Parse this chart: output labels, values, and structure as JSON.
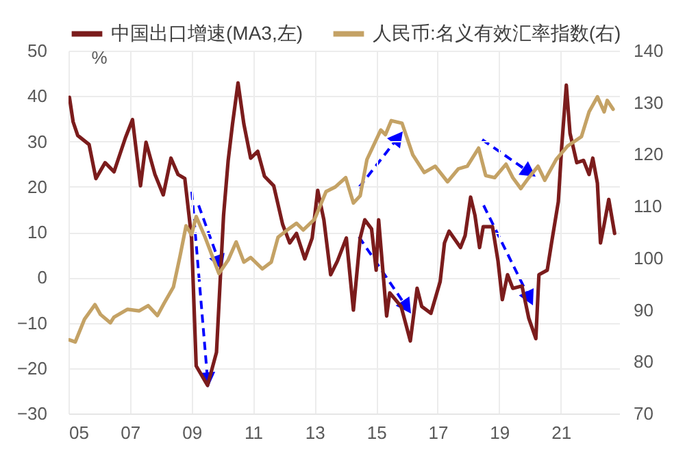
{
  "chart_data": {
    "type": "line",
    "ylabel": "%",
    "grid": true,
    "legend": "top",
    "line_style": "solid",
    "xlim": [
      2005,
      2022.9
    ],
    "xticks": [
      {
        "value": 2005,
        "label": "05"
      },
      {
        "value": 2007,
        "label": "07"
      },
      {
        "value": 2009,
        "label": "09"
      },
      {
        "value": 2011,
        "label": "11"
      },
      {
        "value": 2013,
        "label": "13"
      },
      {
        "value": 2015,
        "label": "15"
      },
      {
        "value": 2017,
        "label": "17"
      },
      {
        "value": 2019,
        "label": "19"
      },
      {
        "value": 2021,
        "label": "21"
      }
    ],
    "ylim": [
      -30,
      50
    ],
    "yticks": [
      -30,
      -20,
      -10,
      0,
      10,
      20,
      30,
      40,
      50
    ],
    "y2lim": [
      70,
      140
    ],
    "y2ticks": [
      70,
      80,
      90,
      100,
      110,
      120,
      130,
      140
    ],
    "series": [
      {
        "name": "中国出口增速(MA3,左)",
        "color": "#7b1c1c",
        "x": [
          2005.03,
          2005.15,
          2005.3,
          2005.67,
          2005.89,
          2006.19,
          2006.48,
          2006.85,
          2007.08,
          2007.34,
          2007.52,
          2007.81,
          2008.08,
          2008.33,
          2008.56,
          2008.78,
          2009.0,
          2009.15,
          2009.52,
          2009.81,
          2010.04,
          2010.19,
          2010.33,
          2010.51,
          2010.7,
          2010.92,
          2011.15,
          2011.37,
          2011.67,
          2011.96,
          2012.19,
          2012.41,
          2012.68,
          2012.92,
          2013.1,
          2013.3,
          2013.52,
          2013.74,
          2014.03,
          2014.26,
          2014.48,
          2014.63,
          2014.85,
          2015.0,
          2015.08,
          2015.34,
          2015.44,
          2015.81,
          2016.11,
          2016.33,
          2016.48,
          2016.78,
          2017.08,
          2017.22,
          2017.37,
          2017.74,
          2017.89,
          2018.07,
          2018.21,
          2018.36,
          2018.48,
          2018.78,
          2018.96,
          2019.1,
          2019.27,
          2019.44,
          2019.74,
          2019.96,
          2020.19,
          2020.29,
          2020.56,
          2020.7,
          2020.92,
          2021.03,
          2021.18,
          2021.3,
          2021.52,
          2021.74,
          2021.92,
          2022.04,
          2022.19,
          2022.29,
          2022.41,
          2022.56,
          2022.75
        ],
        "values": [
          39.7,
          34.3,
          31.3,
          29.3,
          21.8,
          25.3,
          23.3,
          30.8,
          34.8,
          20.2,
          29.8,
          22.7,
          18.2,
          26.3,
          22.7,
          21.8,
          8.7,
          -19.5,
          -23.8,
          -16.5,
          13.7,
          25.8,
          33.8,
          42.9,
          33.8,
          26.3,
          27.8,
          22.3,
          20.2,
          11.7,
          7.6,
          9.7,
          4.1,
          8.7,
          19.2,
          12.7,
          0.6,
          3.6,
          8.7,
          -7.2,
          8.7,
          12.7,
          10.7,
          1.6,
          12.7,
          -8.5,
          -3.4,
          -6.4,
          -14,
          -2.4,
          -6.4,
          -7.9,
          -0.9,
          7.6,
          10.2,
          6.6,
          9.2,
          17.7,
          13.7,
          6.6,
          11.2,
          11.2,
          3.6,
          -4.9,
          0.6,
          -2.4,
          -1.9,
          -9,
          -13.5,
          0.6,
          1.6,
          7.6,
          16.7,
          28.8,
          42.4,
          31.8,
          25.3,
          25.8,
          22.7,
          26.3,
          20.8,
          7.6,
          11.7,
          17.2,
          9.7
        ]
      },
      {
        "name": "人民币:名义有效汇率指数(右)",
        "color": "#c4a265",
        "axis": "y2",
        "x": [
          2005.03,
          2005.22,
          2005.52,
          2005.86,
          2006.04,
          2006.36,
          2006.48,
          2006.92,
          2007.3,
          2007.59,
          2007.89,
          2008.11,
          2008.41,
          2008.63,
          2008.82,
          2009.0,
          2009.15,
          2009.44,
          2009.89,
          2010.19,
          2010.45,
          2010.7,
          2010.92,
          2011.3,
          2011.59,
          2011.81,
          2012.11,
          2012.41,
          2012.63,
          2013.0,
          2013.37,
          2013.67,
          2014.01,
          2014.26,
          2014.48,
          2014.7,
          2015.15,
          2015.3,
          2015.49,
          2015.84,
          2016.19,
          2016.56,
          2016.92,
          2017.32,
          2017.67,
          2017.96,
          2018.33,
          2018.56,
          2018.85,
          2019.22,
          2019.44,
          2019.7,
          2019.96,
          2020.26,
          2020.48,
          2020.85,
          2021.22,
          2021.67,
          2021.92,
          2022.19,
          2022.41,
          2022.51,
          2022.7
        ],
        "values": [
          84.2,
          83.8,
          88.2,
          91.0,
          89.1,
          87.5,
          88.6,
          90.1,
          89.8,
          90.8,
          88.9,
          91.3,
          94.4,
          100.5,
          106.2,
          104.5,
          108.0,
          104.0,
          97.0,
          99.6,
          103.1,
          99.2,
          100.1,
          97.9,
          99.2,
          104.0,
          105.4,
          106.7,
          105.4,
          107.5,
          112.8,
          113.7,
          115.5,
          110.6,
          112.0,
          119.0,
          124.7,
          123.8,
          126.5,
          126.0,
          119.9,
          116.5,
          117.7,
          114.7,
          117.2,
          117.7,
          121.2,
          115.9,
          115.5,
          118.1,
          115.5,
          113.4,
          115.5,
          117.7,
          115.0,
          119.0,
          121.6,
          123.4,
          128.2,
          131.1,
          128.2,
          130.4,
          128.7
        ]
      }
    ]
  }
}
